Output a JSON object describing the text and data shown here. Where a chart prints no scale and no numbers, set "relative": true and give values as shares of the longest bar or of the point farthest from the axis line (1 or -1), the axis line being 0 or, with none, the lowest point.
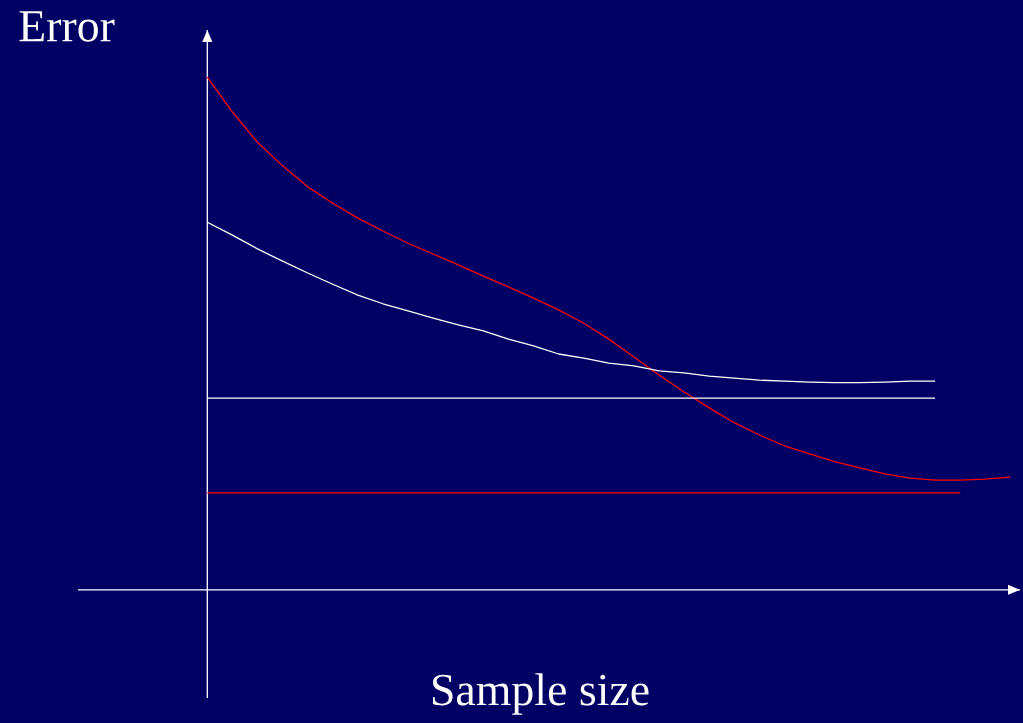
{
  "chart_data": {
    "type": "line",
    "xlabel": "Sample size",
    "ylabel": "Error",
    "relative": true,
    "categories": [
      null,
      null,
      null,
      null,
      null,
      null,
      null,
      null,
      null,
      null,
      null,
      null,
      null,
      null,
      null,
      null,
      null,
      null,
      null,
      null,
      null,
      null,
      null,
      null,
      null,
      null,
      null,
      null,
      null,
      null,
      null,
      null,
      null
    ],
    "series": [
      {
        "color": "#ff0000",
        "values": [
          1.0,
          0.932,
          0.873,
          0.827,
          0.786,
          0.754,
          0.725,
          0.7,
          0.676,
          0.655,
          0.634,
          0.612,
          0.591,
          0.569,
          0.546,
          0.52,
          0.489,
          0.454,
          0.419,
          0.386,
          0.355,
          0.326,
          0.302,
          0.281,
          0.265,
          0.25,
          0.238,
          0.226,
          0.218,
          0.214,
          0.214,
          0.216,
          0.22
        ]
      },
      {
        "color": "#ffffff",
        "values": [
          0.717,
          0.692,
          0.665,
          0.641,
          0.618,
          0.596,
          0.575,
          0.558,
          0.544,
          0.53,
          0.517,
          0.505,
          0.489,
          0.476,
          0.46,
          0.452,
          0.442,
          0.437,
          0.427,
          0.423,
          0.417,
          0.413,
          0.409,
          0.407,
          0.405,
          0.404,
          0.404,
          0.405,
          0.407,
          0.407,
          null,
          null,
          null
        ]
      },
      {
        "color": "#ffffff",
        "values": [
          0.374,
          0.374,
          0.374,
          0.374,
          0.374,
          0.374,
          0.374,
          0.374,
          0.374,
          0.374,
          0.374,
          0.374,
          0.374,
          0.374,
          0.374,
          0.374,
          0.374,
          0.374,
          0.374,
          0.374,
          0.374,
          0.374,
          0.374,
          0.374,
          0.374,
          0.374,
          0.374,
          0.374,
          0.374,
          0.374,
          null,
          null,
          null
        ]
      },
      {
        "color": "#ff0000",
        "values": [
          0.189,
          0.189,
          0.189,
          0.189,
          0.189,
          0.189,
          0.189,
          0.189,
          0.189,
          0.189,
          0.189,
          0.189,
          0.189,
          0.189,
          0.189,
          0.189,
          0.189,
          0.189,
          0.189,
          0.189,
          0.189,
          0.189,
          0.189,
          0.189,
          0.189,
          0.189,
          0.189,
          0.189,
          0.189,
          0.189,
          0.189,
          null,
          null
        ]
      }
    ]
  }
}
